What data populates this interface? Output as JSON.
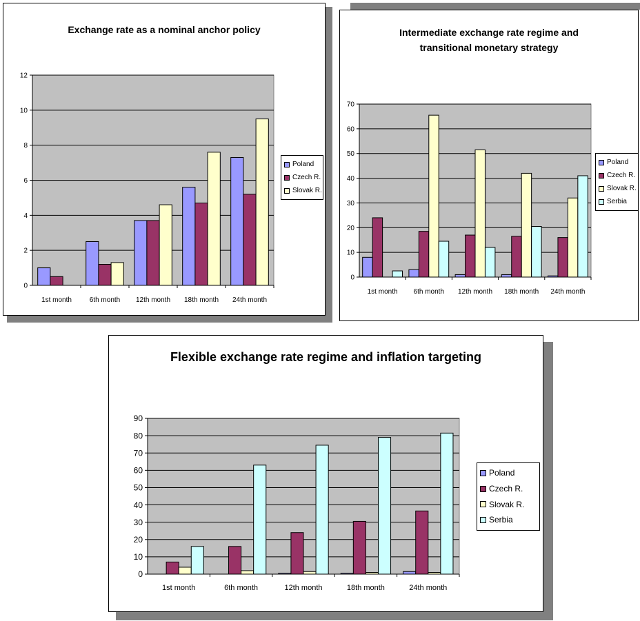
{
  "colors": {
    "plot_bg": "#c0c0c0",
    "gridline": "#000000",
    "shadow": "#808080",
    "poland": "#9999ff",
    "czech": "#993366",
    "slovak": "#ffffcc",
    "serbia": "#ccffff"
  },
  "chart_data": [
    {
      "type": "bar",
      "title": "Exchange rate as a nominal anchor policy",
      "xlabel": "",
      "ylabel": "",
      "categories": [
        "1st month",
        "6th month",
        "12th month",
        "18th month",
        "24th month"
      ],
      "ylim": [
        0,
        12
      ],
      "yticks": [
        "0",
        "2",
        "4",
        "6",
        "8",
        "10",
        "12"
      ],
      "grid": true,
      "legend_position": "right",
      "series": [
        {
          "name": "Poland",
          "values": [
            1.0,
            2.5,
            3.7,
            5.6,
            7.3
          ]
        },
        {
          "name": "Czech R.",
          "values": [
            0.5,
            1.2,
            3.7,
            4.7,
            5.2
          ]
        },
        {
          "name": "Slovak R.",
          "values": [
            0,
            1.3,
            4.6,
            7.6,
            9.5
          ]
        }
      ]
    },
    {
      "type": "bar",
      "title": "Intermediate exchange rate regime and transitional monetary strategy",
      "xlabel": "",
      "ylabel": "",
      "categories": [
        "1st month",
        "6th month",
        "12th month",
        "18th month",
        "24th month"
      ],
      "ylim": [
        0,
        70
      ],
      "yticks": [
        "0",
        "10",
        "20",
        "30",
        "40",
        "50",
        "60",
        "70"
      ],
      "grid": true,
      "legend_position": "right",
      "series": [
        {
          "name": "Poland",
          "values": [
            8,
            3,
            1,
            1,
            0.5
          ]
        },
        {
          "name": "Czech R.",
          "values": [
            24,
            18.5,
            17,
            16.5,
            16
          ]
        },
        {
          "name": "Slovak R.",
          "values": [
            0,
            65.5,
            51.5,
            42,
            32
          ]
        },
        {
          "name": "Serbia",
          "values": [
            2.5,
            14.5,
            12,
            20.5,
            41
          ]
        }
      ]
    },
    {
      "type": "bar",
      "title": "Flexible exchange rate regime and inflation targeting",
      "xlabel": "",
      "ylabel": "",
      "categories": [
        "1st month",
        "6th month",
        "12th month",
        "18th month",
        "24th month"
      ],
      "ylim": [
        0,
        90
      ],
      "yticks": [
        "0",
        "10",
        "20",
        "30",
        "40",
        "50",
        "60",
        "70",
        "80",
        "90"
      ],
      "grid": true,
      "legend_position": "right",
      "series": [
        {
          "name": "Poland",
          "values": [
            0,
            0,
            0.5,
            0.5,
            1.5
          ]
        },
        {
          "name": "Czech R.",
          "values": [
            7,
            16,
            24,
            30.5,
            36.5
          ]
        },
        {
          "name": "Slovak R.",
          "values": [
            4,
            2,
            1.5,
            1,
            1
          ]
        },
        {
          "name": "Serbia",
          "values": [
            16,
            63,
            74.5,
            79,
            81.5
          ]
        }
      ]
    }
  ]
}
